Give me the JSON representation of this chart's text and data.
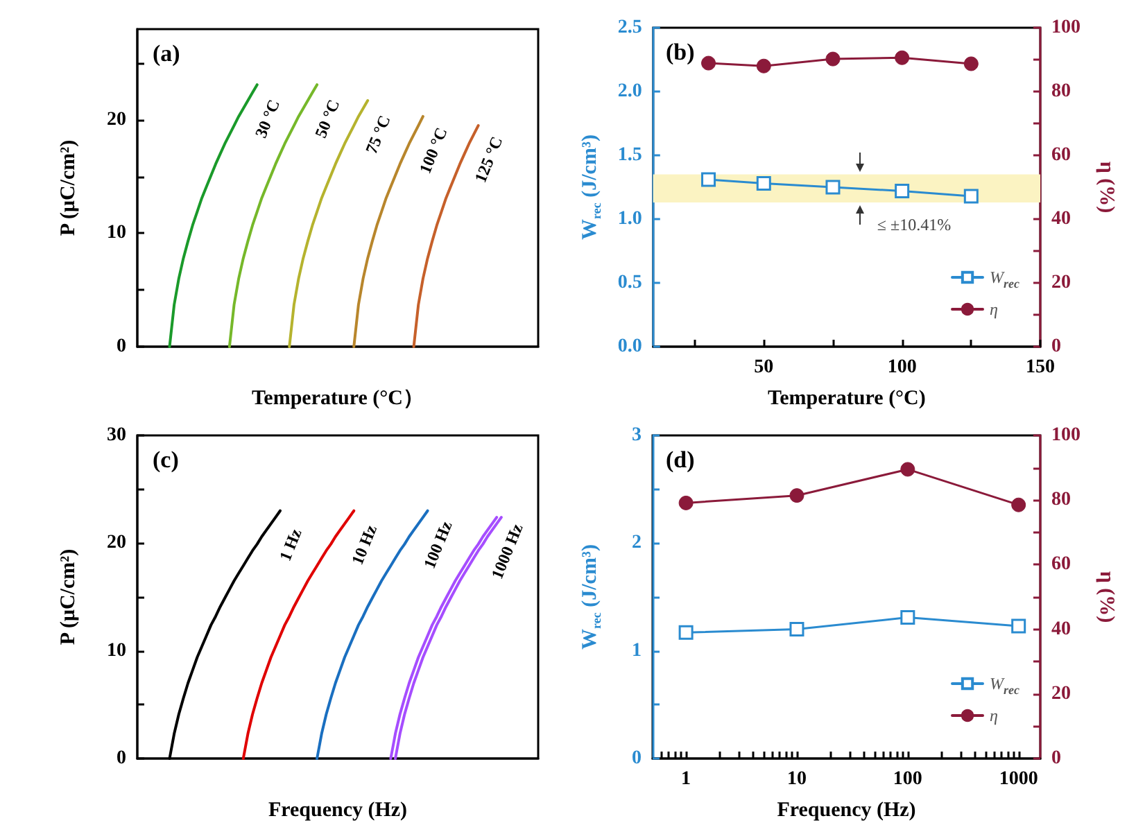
{
  "chart_data": [
    {
      "type": "line",
      "title": "(a)",
      "xlabel": "Temperature (°C）",
      "ylabel": "P (μC/cm²)",
      "tick_labels": "y",
      "categories": [
        null,
        null,
        null,
        null,
        null,
        null,
        null,
        null,
        null,
        null,
        null,
        null,
        null,
        null,
        null,
        null,
        null,
        null,
        null,
        null,
        null,
        null,
        null,
        null,
        null,
        null,
        null,
        null,
        null,
        null,
        null,
        null,
        null,
        null,
        null,
        null,
        null,
        null,
        null,
        null,
        null,
        null,
        null,
        null,
        null,
        null,
        null,
        null,
        null,
        null,
        null,
        null,
        null,
        null,
        null,
        null,
        null,
        null,
        null,
        null,
        null,
        null,
        null,
        null,
        null,
        null,
        null,
        null,
        null,
        null,
        null,
        null,
        null,
        null,
        null,
        null,
        null,
        null,
        null,
        null,
        null,
        null,
        null,
        null,
        null,
        null,
        null,
        null
      ],
      "ylim": [
        0,
        28
      ],
      "yticks": [
        0,
        {
          "value": 5,
          "label": null
        },
        10,
        {
          "value": 15,
          "label": null
        },
        20,
        {
          "value": 25,
          "label": null
        }
      ],
      "series": [
        {
          "name": "30 °C",
          "color": "#1a9a2a",
          "values": [
            null,
            null,
            null,
            null,
            null,
            null,
            null,
            0,
            3.7,
            6.0,
            7.8,
            9.3,
            10.7,
            11.9,
            13.1,
            14.1,
            15.1,
            16.1,
            17.0,
            17.9,
            18.7,
            19.5,
            20.3,
            21.0,
            21.7,
            22.4,
            23.1,
            null,
            null,
            null,
            null,
            null,
            null,
            null,
            null,
            null,
            null,
            null,
            null,
            null,
            null,
            null,
            null,
            null,
            null,
            null,
            null,
            null,
            null,
            null,
            null,
            null,
            null,
            null,
            null,
            null,
            null,
            null,
            null,
            null,
            null,
            null,
            null,
            null,
            null,
            null,
            null,
            null,
            null,
            null,
            null,
            null,
            null,
            null,
            null,
            null,
            null,
            null,
            null,
            null,
            null,
            null,
            null,
            null,
            null,
            null,
            null,
            null
          ]
        },
        {
          "name": "50 °C",
          "color": "#76b82a",
          "values": [
            null,
            null,
            null,
            null,
            null,
            null,
            null,
            null,
            null,
            null,
            null,
            null,
            null,
            null,
            null,
            null,
            null,
            null,
            null,
            null,
            0,
            3.7,
            6.0,
            7.8,
            9.3,
            10.7,
            11.9,
            13.1,
            14.1,
            15.1,
            16.1,
            17.0,
            17.9,
            18.7,
            19.5,
            20.3,
            21.0,
            21.7,
            22.4,
            23.1,
            null,
            null,
            null,
            null,
            null,
            null,
            null,
            null,
            null,
            null,
            null,
            null,
            null,
            null,
            null,
            null,
            null,
            null,
            null,
            null,
            null,
            null,
            null,
            null,
            null,
            null,
            null,
            null,
            null,
            null,
            null,
            null,
            null,
            null,
            null,
            null,
            null,
            null,
            null,
            null,
            null,
            null,
            null,
            null,
            null,
            null,
            null,
            null
          ]
        },
        {
          "name": "75 °C",
          "color": "#b5b32e",
          "values": [
            null,
            null,
            null,
            null,
            null,
            null,
            null,
            null,
            null,
            null,
            null,
            null,
            null,
            null,
            null,
            null,
            null,
            null,
            null,
            null,
            null,
            null,
            null,
            null,
            null,
            null,
            null,
            null,
            null,
            null,
            null,
            null,
            null,
            0,
            3.7,
            6.0,
            7.8,
            9.3,
            10.7,
            11.9,
            13.1,
            14.1,
            15.1,
            16.1,
            17.0,
            17.9,
            18.7,
            19.5,
            20.3,
            21.0,
            21.7,
            null,
            null,
            null,
            null,
            null,
            null,
            null,
            null,
            null,
            null,
            null,
            null,
            null,
            null,
            null,
            null,
            null,
            null,
            null,
            null,
            null,
            null,
            null,
            null,
            null,
            null,
            null,
            null,
            null,
            null,
            null,
            null,
            null,
            null,
            null,
            null,
            null
          ]
        },
        {
          "name": "100 °C",
          "color": "#b8862c",
          "values": [
            null,
            null,
            null,
            null,
            null,
            null,
            null,
            null,
            null,
            null,
            null,
            null,
            null,
            null,
            null,
            null,
            null,
            null,
            null,
            null,
            null,
            null,
            null,
            null,
            null,
            null,
            null,
            null,
            null,
            null,
            null,
            null,
            null,
            null,
            null,
            null,
            null,
            null,
            null,
            null,
            null,
            null,
            null,
            null,
            null,
            null,
            null,
            0,
            3.7,
            6.0,
            7.8,
            9.3,
            10.7,
            11.9,
            13.1,
            14.1,
            15.1,
            16.1,
            17.0,
            17.9,
            18.7,
            19.5,
            20.3,
            null,
            null,
            null,
            null,
            null,
            null,
            null,
            null,
            null,
            null,
            null,
            null,
            null,
            null,
            null,
            null,
            null,
            null,
            null,
            null,
            null,
            null,
            null,
            null,
            null
          ]
        },
        {
          "name": "125 °C",
          "color": "#c6602a",
          "values": [
            null,
            null,
            null,
            null,
            null,
            null,
            null,
            null,
            null,
            null,
            null,
            null,
            null,
            null,
            null,
            null,
            null,
            null,
            null,
            null,
            null,
            null,
            null,
            null,
            null,
            null,
            null,
            null,
            null,
            null,
            null,
            null,
            null,
            null,
            null,
            null,
            null,
            null,
            null,
            null,
            null,
            null,
            null,
            null,
            null,
            null,
            null,
            null,
            null,
            null,
            null,
            null,
            null,
            null,
            null,
            null,
            null,
            null,
            null,
            null,
            0,
            3.7,
            6.0,
            7.8,
            9.3,
            10.7,
            11.9,
            13.1,
            14.1,
            15.1,
            16.1,
            17.0,
            17.9,
            18.7,
            19.5,
            null,
            null,
            null,
            null,
            null,
            null,
            null,
            null,
            null,
            null,
            null,
            null,
            null
          ]
        }
      ]
    },
    {
      "type": "line",
      "title": "(b)",
      "xlabel": "Temperature (°C)",
      "ylabel": "W$_{rec}$ (J/cm³)",
      "y2label": "η (%)",
      "legend": "bottom right",
      "x": [
        30,
        50,
        75,
        100,
        125
      ],
      "xlim": [
        10,
        150
      ],
      "xticks": [
        {
          "value": 25,
          "label": null
        },
        50,
        {
          "value": 75,
          "label": null
        },
        100,
        {
          "value": 125,
          "label": null
        },
        150
      ],
      "ylim": [
        0,
        2.5
      ],
      "yticks": [
        {
          "value": 0,
          "label": "0.0"
        },
        0.5,
        {
          "value": 1,
          "label": "1.0"
        },
        1.5,
        {
          "value": 2,
          "label": "2.0"
        },
        2.5
      ],
      "y2lim": [
        0,
        100
      ],
      "y2ticks": [
        0,
        {
          "value": 10,
          "label": null
        },
        20,
        {
          "value": 30,
          "label": null
        },
        40,
        {
          "value": 50,
          "label": null
        },
        60,
        {
          "value": 70,
          "label": null
        },
        80,
        {
          "value": 90,
          "label": null
        },
        100
      ],
      "bands": [
        {
          "axis": "y",
          "from": 1.13,
          "to": 1.35,
          "color": "#fbf3c2"
        }
      ],
      "annotations": [
        {
          "text": "≤ ±10.41%",
          "x": 85,
          "y": 1.13
        }
      ],
      "series": [
        {
          "name": "W$_{rec}$",
          "color": "#2a8bd0",
          "marker": "square",
          "values": [
            1.31,
            1.28,
            1.25,
            1.22,
            1.18
          ]
        },
        {
          "name": "η",
          "color": "#8b1a3a",
          "marker": "circle",
          "axis": "y2",
          "values": [
            88.9,
            88.0,
            90.2,
            90.6,
            88.7
          ]
        }
      ]
    },
    {
      "type": "line",
      "title": "(c)",
      "xlabel": "Frequency (Hz)",
      "ylabel": "P (μC/cm²)",
      "tick_labels": "y",
      "categories": [
        null,
        null,
        null,
        null,
        null,
        null,
        null,
        null,
        null,
        null,
        null,
        null,
        null,
        null,
        null,
        null,
        null,
        null,
        null,
        null,
        null,
        null,
        null,
        null,
        null,
        null,
        null,
        null,
        null,
        null,
        null,
        null,
        null,
        null,
        null,
        null,
        null,
        null,
        null,
        null,
        null,
        null,
        null,
        null,
        null,
        null,
        null,
        null,
        null,
        null,
        null,
        null,
        null,
        null,
        null,
        null,
        null,
        null,
        null,
        null,
        null,
        null,
        null,
        null,
        null,
        null,
        null,
        null,
        null,
        null,
        null,
        null,
        null,
        null,
        null,
        null,
        null,
        null,
        null,
        null,
        null,
        null,
        null,
        null,
        null,
        null,
        null,
        null
      ],
      "ylim": [
        0,
        30
      ],
      "yticks": [
        0,
        {
          "value": 5,
          "label": null
        },
        10,
        {
          "value": 15,
          "label": null
        },
        20,
        {
          "value": 25,
          "label": null
        },
        30
      ],
      "series": [
        {
          "name": "1 Hz",
          "color": "#000000",
          "values": [
            null,
            null,
            null,
            null,
            null,
            null,
            null,
            0,
            2.3,
            4.1,
            5.6,
            7.0,
            8.2,
            9.4,
            10.4,
            11.4,
            12.4,
            13.2,
            14.1,
            14.9,
            15.7,
            16.5,
            17.2,
            17.9,
            18.6,
            19.3,
            19.9,
            20.6,
            21.2,
            21.8,
            22.4,
            23.0,
            null,
            null,
            null,
            null,
            null,
            null,
            null,
            null,
            null,
            null,
            null,
            null,
            null,
            null,
            null,
            null,
            null,
            null,
            null,
            null,
            null,
            null,
            null,
            null,
            null,
            null,
            null,
            null,
            null,
            null,
            null,
            null,
            null,
            null,
            null,
            null,
            null,
            null,
            null,
            null,
            null,
            null,
            null,
            null,
            null,
            null,
            null,
            null,
            null,
            null,
            null,
            null,
            null,
            null,
            null,
            null
          ]
        },
        {
          "name": "10 Hz",
          "color": "#e00000",
          "values": [
            null,
            null,
            null,
            null,
            null,
            null,
            null,
            null,
            null,
            null,
            null,
            null,
            null,
            null,
            null,
            null,
            null,
            null,
            null,
            null,
            null,
            null,
            null,
            0,
            2.3,
            4.1,
            5.6,
            7.0,
            8.2,
            9.4,
            10.4,
            11.4,
            12.4,
            13.2,
            14.1,
            14.9,
            15.7,
            16.5,
            17.2,
            17.9,
            18.6,
            19.3,
            19.9,
            20.6,
            21.2,
            21.8,
            22.4,
            23.0,
            null,
            null,
            null,
            null,
            null,
            null,
            null,
            null,
            null,
            null,
            null,
            null,
            null,
            null,
            null,
            null,
            null,
            null,
            null,
            null,
            null,
            null,
            null,
            null,
            null,
            null,
            null,
            null,
            null,
            null,
            null,
            null,
            null,
            null,
            null,
            null,
            null,
            null,
            null,
            null
          ]
        },
        {
          "name": "100 Hz",
          "color": "#1a6fc0",
          "values": [
            null,
            null,
            null,
            null,
            null,
            null,
            null,
            null,
            null,
            null,
            null,
            null,
            null,
            null,
            null,
            null,
            null,
            null,
            null,
            null,
            null,
            null,
            null,
            null,
            null,
            null,
            null,
            null,
            null,
            null,
            null,
            null,
            null,
            null,
            null,
            null,
            null,
            null,
            null,
            0,
            2.3,
            4.1,
            5.6,
            7.0,
            8.2,
            9.4,
            10.4,
            11.4,
            12.4,
            13.2,
            14.1,
            14.9,
            15.7,
            16.5,
            17.2,
            17.9,
            18.6,
            19.3,
            19.9,
            20.6,
            21.2,
            21.8,
            22.4,
            23.0,
            null,
            null,
            null,
            null,
            null,
            null,
            null,
            null,
            null,
            null,
            null,
            null,
            null,
            null,
            null,
            null,
            null,
            null,
            null,
            null,
            null,
            null,
            null,
            null
          ]
        },
        {
          "name": "1000 Hz",
          "color": "#a64dff",
          "values": [
            null,
            null,
            null,
            null,
            null,
            null,
            null,
            null,
            null,
            null,
            null,
            null,
            null,
            null,
            null,
            null,
            null,
            null,
            null,
            null,
            null,
            null,
            null,
            null,
            null,
            null,
            null,
            null,
            null,
            null,
            null,
            null,
            null,
            null,
            null,
            null,
            null,
            null,
            null,
            null,
            null,
            null,
            null,
            null,
            null,
            null,
            null,
            null,
            null,
            null,
            null,
            null,
            null,
            null,
            null,
            0,
            2.3,
            4.1,
            5.6,
            7.0,
            8.2,
            9.4,
            10.4,
            11.4,
            12.4,
            13.2,
            14.1,
            14.9,
            15.7,
            16.5,
            17.2,
            17.9,
            18.6,
            19.3,
            19.9,
            20.6,
            21.2,
            21.8,
            22.4,
            null,
            null,
            null,
            null,
            null,
            null,
            null,
            null,
            null
          ]
        },
        {
          "color": "#a64dff",
          "values": [
            null,
            null,
            null,
            null,
            null,
            null,
            null,
            null,
            null,
            null,
            null,
            null,
            null,
            null,
            null,
            null,
            null,
            null,
            null,
            null,
            null,
            null,
            null,
            null,
            null,
            null,
            null,
            null,
            null,
            null,
            null,
            null,
            null,
            null,
            null,
            null,
            null,
            null,
            null,
            null,
            null,
            null,
            null,
            null,
            null,
            null,
            null,
            null,
            null,
            null,
            null,
            null,
            null,
            null,
            null,
            null,
            0,
            2.3,
            4.1,
            5.6,
            7.0,
            8.2,
            9.4,
            10.4,
            11.4,
            12.4,
            13.2,
            14.1,
            14.9,
            15.7,
            16.5,
            17.2,
            17.9,
            18.6,
            19.3,
            19.9,
            20.6,
            21.2,
            21.8,
            22.4,
            null,
            null,
            null,
            null,
            null,
            null,
            null,
            null
          ]
        }
      ]
    },
    {
      "type": "line",
      "title": "(d)",
      "xlabel": "Frequency (Hz)",
      "ylabel": "W$_{rec}$ (J/cm³)",
      "y2label": "η (%)",
      "legend": "bottom right",
      "log": "x",
      "x": [
        1,
        10,
        100,
        1000
      ],
      "xlim": [
        0.5,
        1570
      ],
      "xticks": [
        {
          "value": 0.6,
          "label": null
        },
        {
          "value": 0.7,
          "label": null
        },
        {
          "value": 0.8,
          "label": null
        },
        {
          "value": 0.9,
          "label": null
        },
        1,
        {
          "value": 2,
          "label": null
        },
        {
          "value": 3,
          "label": null
        },
        {
          "value": 4,
          "label": null
        },
        {
          "value": 5,
          "label": null
        },
        {
          "value": 6,
          "label": null
        },
        {
          "value": 7,
          "label": null
        },
        {
          "value": 8,
          "label": null
        },
        {
          "value": 9,
          "label": null
        },
        10,
        {
          "value": 20,
          "label": null
        },
        {
          "value": 30,
          "label": null
        },
        {
          "value": 40,
          "label": null
        },
        {
          "value": 50,
          "label": null
        },
        {
          "value": 60,
          "label": null
        },
        {
          "value": 70,
          "label": null
        },
        {
          "value": 80,
          "label": null
        },
        {
          "value": 90,
          "label": null
        },
        100,
        {
          "value": 200,
          "label": null
        },
        {
          "value": 300,
          "label": null
        },
        {
          "value": 400,
          "label": null
        },
        {
          "value": 500,
          "label": null
        },
        {
          "value": 600,
          "label": null
        },
        {
          "value": 700,
          "label": null
        },
        {
          "value": 800,
          "label": null
        },
        {
          "value": 900,
          "label": null
        },
        1000
      ],
      "ylim": [
        0,
        3
      ],
      "yticks": [
        0,
        {
          "value": 0.5,
          "label": null
        },
        1,
        {
          "value": 1.5,
          "label": null
        },
        2,
        {
          "value": 2.5,
          "label": null
        },
        3
      ],
      "y2lim": [
        0,
        100
      ],
      "y2ticks": [
        0,
        {
          "value": 10,
          "label": null
        },
        20,
        {
          "value": 30,
          "label": null
        },
        40,
        {
          "value": 50,
          "label": null
        },
        60,
        {
          "value": 70,
          "label": null
        },
        80,
        {
          "value": 90,
          "label": null
        },
        100
      ],
      "series": [
        {
          "name": "W$_{rec}$",
          "color": "#2a8bd0",
          "marker": "square",
          "values": [
            1.17,
            1.2,
            1.31,
            1.23
          ]
        },
        {
          "name": "η",
          "color": "#8b1a3a",
          "marker": "circle",
          "axis": "y2",
          "values": [
            79.1,
            81.4,
            89.5,
            78.5
          ]
        }
      ]
    }
  ]
}
